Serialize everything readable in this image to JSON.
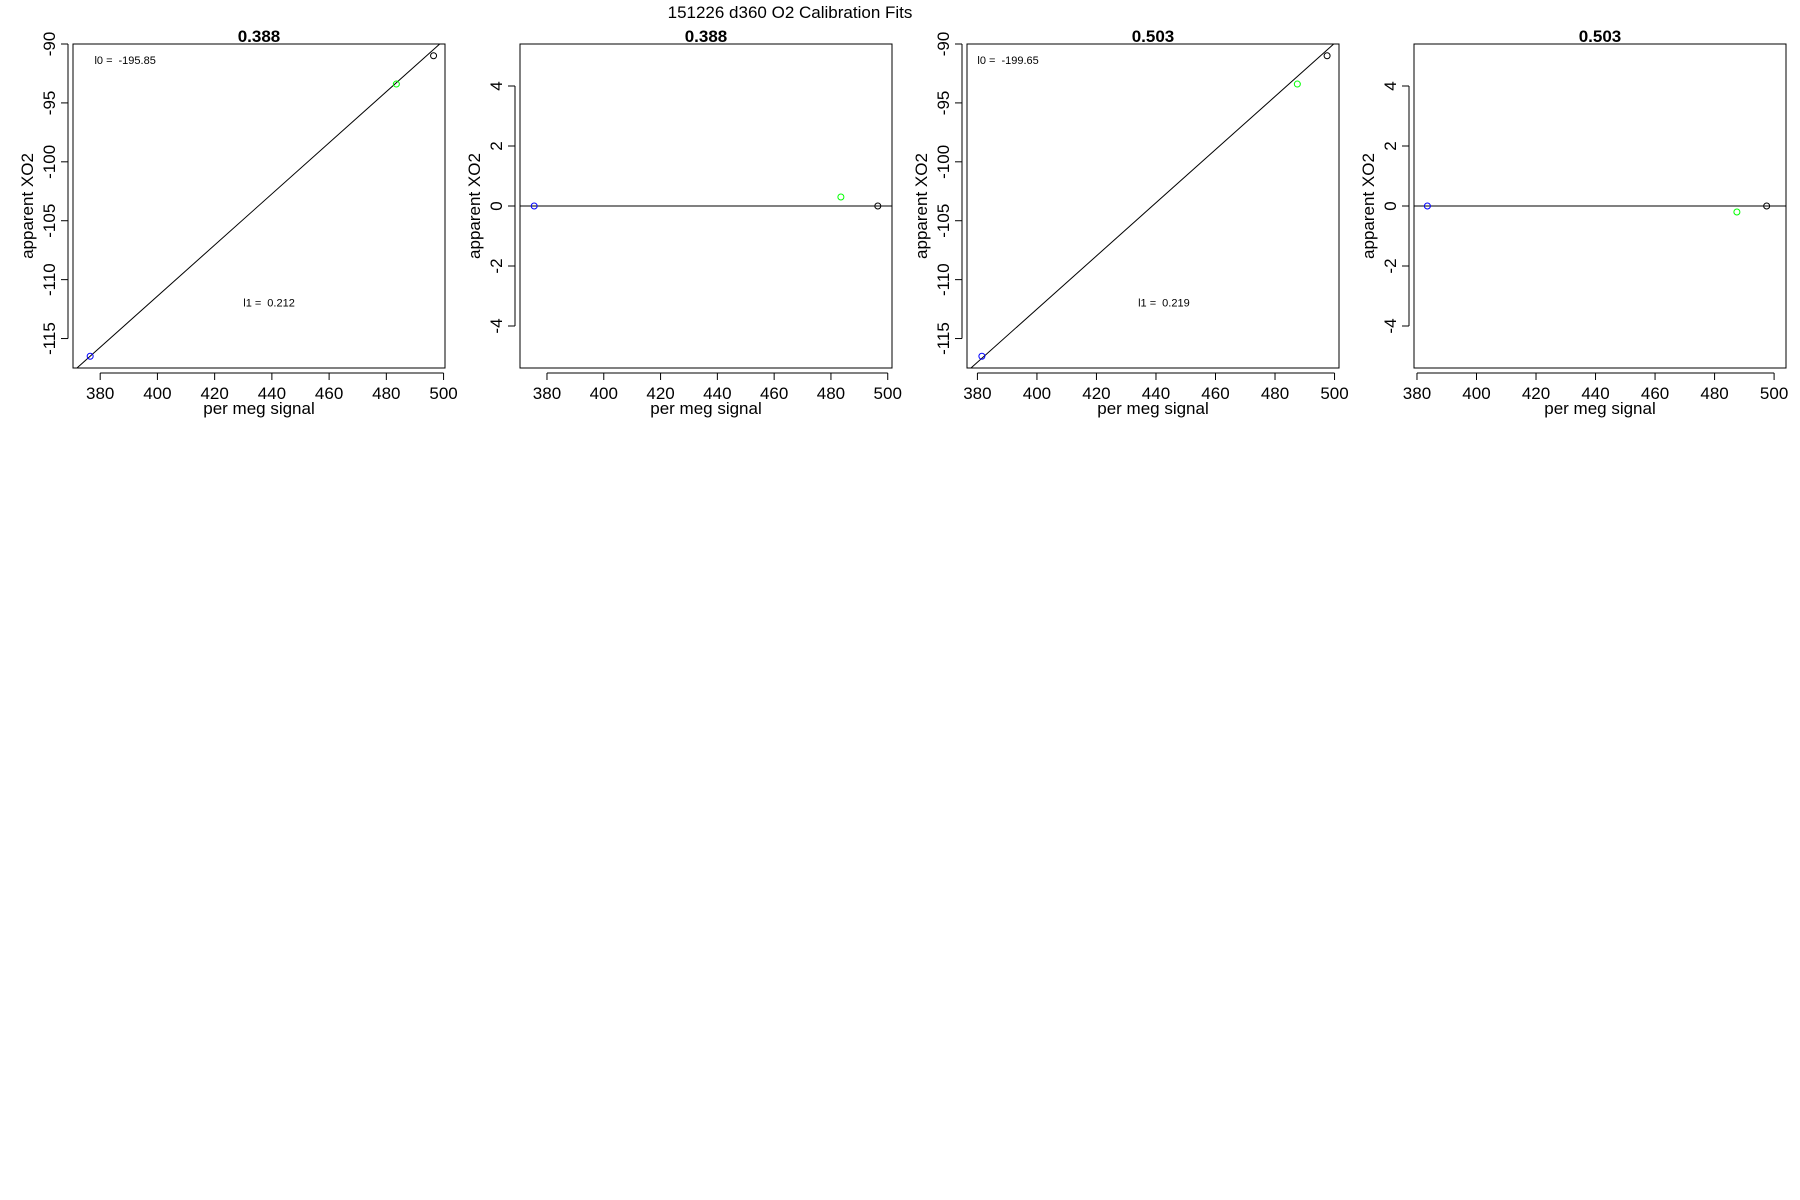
{
  "figure": {
    "title": "151226   d360   O2 Calibration Fits"
  },
  "chart_data": [
    {
      "type": "scatter",
      "title": "0.388",
      "xlabel": "per meg signal",
      "ylabel": "apparent XO2",
      "xlim": [
        370.5,
        500.5
      ],
      "ylim": [
        -117.5,
        -90
      ],
      "xticks": [
        380,
        400,
        420,
        440,
        460,
        480,
        500
      ],
      "yticks": [
        -115,
        -110,
        -105,
        -100,
        -95,
        -90
      ],
      "points": [
        {
          "x": 376.5,
          "y": -116.5,
          "color": "#0000ff"
        },
        {
          "x": 483.5,
          "y": -93.4,
          "color": "#00ff00"
        },
        {
          "x": 496.5,
          "y": -91.0,
          "color": "#000000"
        }
      ],
      "fit_line": {
        "x": [
          370.5,
          500.5
        ],
        "y": [
          -117.8,
          -89.6
        ]
      },
      "annotations": [
        {
          "label": "l0 =",
          "value": "-195.85",
          "x": 378,
          "y": -91.7
        },
        {
          "label": "l1 =",
          "value": "0.212",
          "x": 430,
          "y": -112.3
        }
      ]
    },
    {
      "type": "scatter",
      "title": "0.388",
      "xlabel": "per meg signal",
      "ylabel": "apparent XO2",
      "xlim": [
        370.5,
        501.5
      ],
      "ylim": [
        -5.4,
        5.4
      ],
      "xticks": [
        380,
        400,
        420,
        440,
        460,
        480,
        500
      ],
      "yticks": [
        -4,
        -2,
        0,
        2,
        4
      ],
      "points": [
        {
          "x": 375.5,
          "y": 0.0,
          "color": "#0000ff"
        },
        {
          "x": 483.5,
          "y": 0.3,
          "color": "#00ff00"
        },
        {
          "x": 496.5,
          "y": 0.0,
          "color": "#000000"
        }
      ],
      "reference_line": {
        "y": 0
      }
    },
    {
      "type": "scatter",
      "title": "0.503",
      "xlabel": "per meg signal",
      "ylabel": "apparent XO2",
      "xlim": [
        376.5,
        501.5
      ],
      "ylim": [
        -117.5,
        -90
      ],
      "xticks": [
        380,
        400,
        420,
        440,
        460,
        480,
        500
      ],
      "yticks": [
        -115,
        -110,
        -105,
        -100,
        -95,
        -90
      ],
      "points": [
        {
          "x": 381.5,
          "y": -116.5,
          "color": "#0000ff"
        },
        {
          "x": 487.5,
          "y": -93.4,
          "color": "#00ff00"
        },
        {
          "x": 497.5,
          "y": -91.0,
          "color": "#000000"
        }
      ],
      "fit_line": {
        "x": [
          376.5,
          501.5
        ],
        "y": [
          -117.8,
          -89.6
        ]
      },
      "annotations": [
        {
          "label": "l0 =",
          "value": "-199.65",
          "x": 380,
          "y": -91.7
        },
        {
          "label": "l1 =",
          "value": "0.219",
          "x": 434,
          "y": -112.3
        }
      ]
    },
    {
      "type": "scatter",
      "title": "0.503",
      "xlabel": "per meg signal",
      "ylabel": "apparent XO2",
      "xlim": [
        379,
        504
      ],
      "ylim": [
        -5.4,
        5.4
      ],
      "xticks": [
        380,
        400,
        420,
        440,
        460,
        480,
        500
      ],
      "yticks": [
        -4,
        -2,
        0,
        2,
        4
      ],
      "points": [
        {
          "x": 383.5,
          "y": 0.0,
          "color": "#0000ff"
        },
        {
          "x": 487.5,
          "y": -0.2,
          "color": "#00ff00"
        },
        {
          "x": 497.5,
          "y": 0.0,
          "color": "#000000"
        }
      ],
      "reference_line": {
        "y": 0
      }
    }
  ]
}
